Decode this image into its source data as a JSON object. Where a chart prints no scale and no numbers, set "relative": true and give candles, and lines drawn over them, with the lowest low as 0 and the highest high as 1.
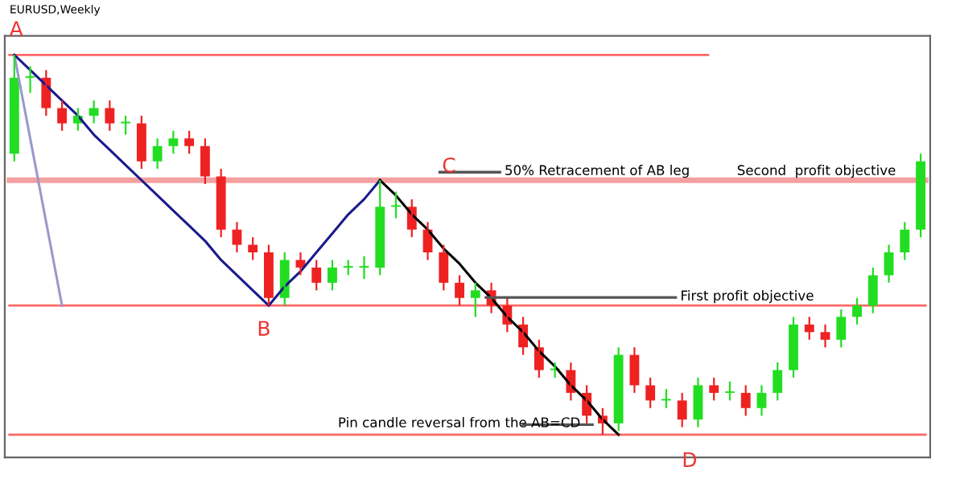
{
  "chart_data": {
    "type": "candlestick",
    "title": "EURUSD,Weekly",
    "relative": true,
    "categories": [
      null,
      null,
      null,
      null,
      null,
      null,
      null,
      null,
      null,
      null,
      null,
      null,
      null,
      null,
      null,
      null,
      null,
      null,
      null,
      null,
      null,
      null,
      null,
      null,
      null,
      null,
      null,
      null,
      null,
      null,
      null,
      null,
      null,
      null,
      null,
      null,
      null,
      null,
      null,
      null,
      null,
      null,
      null,
      null,
      null,
      null,
      null,
      null,
      null,
      null,
      null,
      null,
      null,
      null,
      null,
      null,
      null,
      null
    ],
    "ohlc": [
      [
        0.74,
        1.0,
        0.72,
        0.94
      ],
      [
        0.94,
        0.97,
        0.9,
        0.94
      ],
      [
        0.94,
        0.96,
        0.84,
        0.86
      ],
      [
        0.86,
        0.88,
        0.8,
        0.82
      ],
      [
        0.82,
        0.86,
        0.8,
        0.84
      ],
      [
        0.84,
        0.88,
        0.82,
        0.86
      ],
      [
        0.86,
        0.88,
        0.8,
        0.82
      ],
      [
        0.82,
        0.84,
        0.79,
        0.82
      ],
      [
        0.82,
        0.84,
        0.7,
        0.72
      ],
      [
        0.72,
        0.78,
        0.7,
        0.76
      ],
      [
        0.76,
        0.8,
        0.74,
        0.78
      ],
      [
        0.78,
        0.8,
        0.74,
        0.76
      ],
      [
        0.76,
        0.78,
        0.66,
        0.68
      ],
      [
        0.68,
        0.7,
        0.52,
        0.54
      ],
      [
        0.54,
        0.56,
        0.48,
        0.5
      ],
      [
        0.5,
        0.52,
        0.46,
        0.48
      ],
      [
        0.48,
        0.5,
        0.34,
        0.36
      ],
      [
        0.36,
        0.48,
        0.34,
        0.46
      ],
      [
        0.46,
        0.48,
        0.42,
        0.44
      ],
      [
        0.44,
        0.46,
        0.38,
        0.4
      ],
      [
        0.4,
        0.46,
        0.38,
        0.44
      ],
      [
        0.44,
        0.46,
        0.42,
        0.44
      ],
      [
        0.44,
        0.47,
        0.41,
        0.44
      ],
      [
        0.44,
        0.67,
        0.42,
        0.6
      ],
      [
        0.6,
        0.64,
        0.57,
        0.6
      ],
      [
        0.6,
        0.62,
        0.52,
        0.54
      ],
      [
        0.54,
        0.56,
        0.46,
        0.48
      ],
      [
        0.48,
        0.5,
        0.38,
        0.4
      ],
      [
        0.4,
        0.42,
        0.34,
        0.36
      ],
      [
        0.36,
        0.4,
        0.31,
        0.38
      ],
      [
        0.38,
        0.4,
        0.32,
        0.34
      ],
      [
        0.34,
        0.36,
        0.27,
        0.29
      ],
      [
        0.29,
        0.31,
        0.21,
        0.23
      ],
      [
        0.23,
        0.25,
        0.15,
        0.17
      ],
      [
        0.17,
        0.19,
        0.15,
        0.17
      ],
      [
        0.17,
        0.19,
        0.09,
        0.11
      ],
      [
        0.11,
        0.13,
        0.03,
        0.05
      ],
      [
        0.05,
        0.07,
        0.0,
        0.03
      ],
      [
        0.03,
        0.23,
        0.01,
        0.21
      ],
      [
        0.21,
        0.23,
        0.11,
        0.13
      ],
      [
        0.13,
        0.15,
        0.07,
        0.09
      ],
      [
        0.09,
        0.12,
        0.07,
        0.09
      ],
      [
        0.09,
        0.11,
        0.02,
        0.04
      ],
      [
        0.04,
        0.15,
        0.02,
        0.13
      ],
      [
        0.13,
        0.15,
        0.09,
        0.11
      ],
      [
        0.11,
        0.14,
        0.09,
        0.11
      ],
      [
        0.11,
        0.13,
        0.05,
        0.07
      ],
      [
        0.07,
        0.13,
        0.05,
        0.11
      ],
      [
        0.11,
        0.19,
        0.09,
        0.17
      ],
      [
        0.17,
        0.31,
        0.15,
        0.29
      ],
      [
        0.29,
        0.31,
        0.25,
        0.27
      ],
      [
        0.27,
        0.29,
        0.23,
        0.25
      ],
      [
        0.25,
        0.33,
        0.23,
        0.31
      ],
      [
        0.31,
        0.36,
        0.29,
        0.34
      ],
      [
        0.34,
        0.44,
        0.32,
        0.42
      ],
      [
        0.42,
        0.5,
        0.4,
        0.48
      ],
      [
        0.48,
        0.56,
        0.46,
        0.54
      ],
      [
        0.54,
        0.74,
        0.52,
        0.72
      ]
    ],
    "series": [
      {
        "type": "line",
        "color": "#9999cc",
        "values": [
          1.0,
          0.78,
          0.56,
          0.34,
          null,
          null,
          null,
          null,
          null,
          null,
          null,
          null,
          null,
          null,
          null,
          null,
          null,
          null,
          null,
          null,
          null,
          null,
          null,
          null,
          null,
          null,
          null,
          null,
          null,
          null,
          null,
          null,
          null,
          null,
          null,
          null,
          null,
          null,
          null,
          null,
          null,
          null,
          null,
          null,
          null,
          null,
          null,
          null,
          null,
          null,
          null,
          null,
          null,
          null,
          null,
          null,
          null,
          null
        ]
      },
      {
        "type": "line",
        "color": "#1a1a8c",
        "values": [
          1.0,
          0.96,
          0.92,
          0.88,
          0.84,
          0.79,
          0.75,
          0.71,
          0.67,
          0.63,
          0.59,
          0.55,
          0.51,
          0.46,
          0.42,
          0.38,
          0.34,
          0.39,
          0.43,
          0.48,
          0.53,
          0.58,
          0.62,
          0.67,
          null,
          null,
          null,
          null,
          null,
          null,
          null,
          null,
          null,
          null,
          null,
          null,
          null,
          null,
          null,
          null,
          null,
          null,
          null,
          null,
          null,
          null,
          null,
          null,
          null,
          null,
          null,
          null,
          null,
          null,
          null,
          null,
          null,
          null
        ]
      },
      {
        "type": "line",
        "color": "#000000",
        "values": [
          null,
          null,
          null,
          null,
          null,
          null,
          null,
          null,
          null,
          null,
          null,
          null,
          null,
          null,
          null,
          null,
          null,
          null,
          null,
          null,
          null,
          null,
          null,
          0.67,
          0.63,
          0.58,
          0.54,
          0.49,
          0.45,
          0.4,
          0.36,
          0.31,
          0.27,
          0.22,
          0.18,
          0.13,
          0.09,
          0.04,
          0.0,
          null,
          null,
          null,
          null,
          null,
          null,
          null,
          null,
          null,
          null,
          null,
          null,
          null,
          null,
          null,
          null,
          null,
          null,
          null
        ]
      }
    ],
    "ref_lines": [
      {
        "axis": "y",
        "value": 1.0,
        "color": "#ff6666"
      },
      {
        "axis": "y",
        "value": 0.67,
        "color": "#f4a0a0"
      },
      {
        "axis": "y",
        "value": 0.34,
        "color": "#ff6666"
      },
      {
        "axis": "y",
        "value": 0.0,
        "color": "#ff6666"
      }
    ],
    "annotations": [
      {
        "text": "A",
        "y": 1.0
      },
      {
        "text": "B",
        "y": 0.34
      },
      {
        "text": "C",
        "y": 0.67
      },
      {
        "text": "D",
        "y": 0.0
      },
      {
        "text": "50% Retracement of AB leg",
        "y": 0.67
      },
      {
        "text": "Second  profit objective",
        "y": 0.67
      },
      {
        "text": "First profit objective",
        "y": 0.34
      },
      {
        "text": "Pin candle reversal from the AB=CD",
        "y": 0.0
      }
    ]
  }
}
